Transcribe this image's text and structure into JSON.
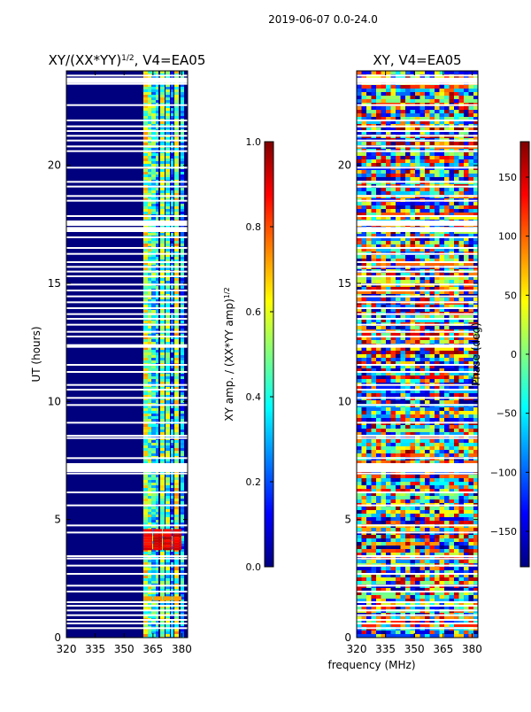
{
  "suptitle": "2019-06-07 0.0-24.0",
  "shared_xlabel": "frequency (MHz)",
  "chart_data": [
    {
      "type": "heatmap",
      "title": "XY/(XX*YY)",
      "title_sup": "1/2",
      "title_suffix": ", V4=EA05",
      "xlabel": "",
      "ylabel": "UT (hours)",
      "xlim": [
        320,
        383
      ],
      "ylim": [
        0,
        24
      ],
      "xticks": [
        320,
        335,
        350,
        365,
        380
      ],
      "yticks": [
        0,
        5,
        10,
        15,
        20
      ],
      "colorbar": {
        "label": "XY amp. / (XX*YY amp)",
        "label_sup": "1/2",
        "range": [
          0.0,
          1.0
        ],
        "ticks": [
          "0.0",
          "0.2",
          "0.4",
          "0.6",
          "0.8",
          "1.0"
        ]
      }
    },
    {
      "type": "heatmap",
      "title": "XY, V4=EA05",
      "xlabel": "frequency (MHz)",
      "ylabel": "",
      "xlim": [
        320,
        383
      ],
      "ylim": [
        0,
        24
      ],
      "xticks": [
        320,
        335,
        350,
        365,
        380
      ],
      "yticks": [
        0,
        5,
        10,
        15,
        20
      ],
      "colorbar": {
        "label": "Phase (deg)",
        "range": [
          -180,
          180
        ],
        "ticks": [
          "−150",
          "−100",
          "−50",
          "0",
          "50",
          "100",
          "150"
        ]
      }
    }
  ]
}
